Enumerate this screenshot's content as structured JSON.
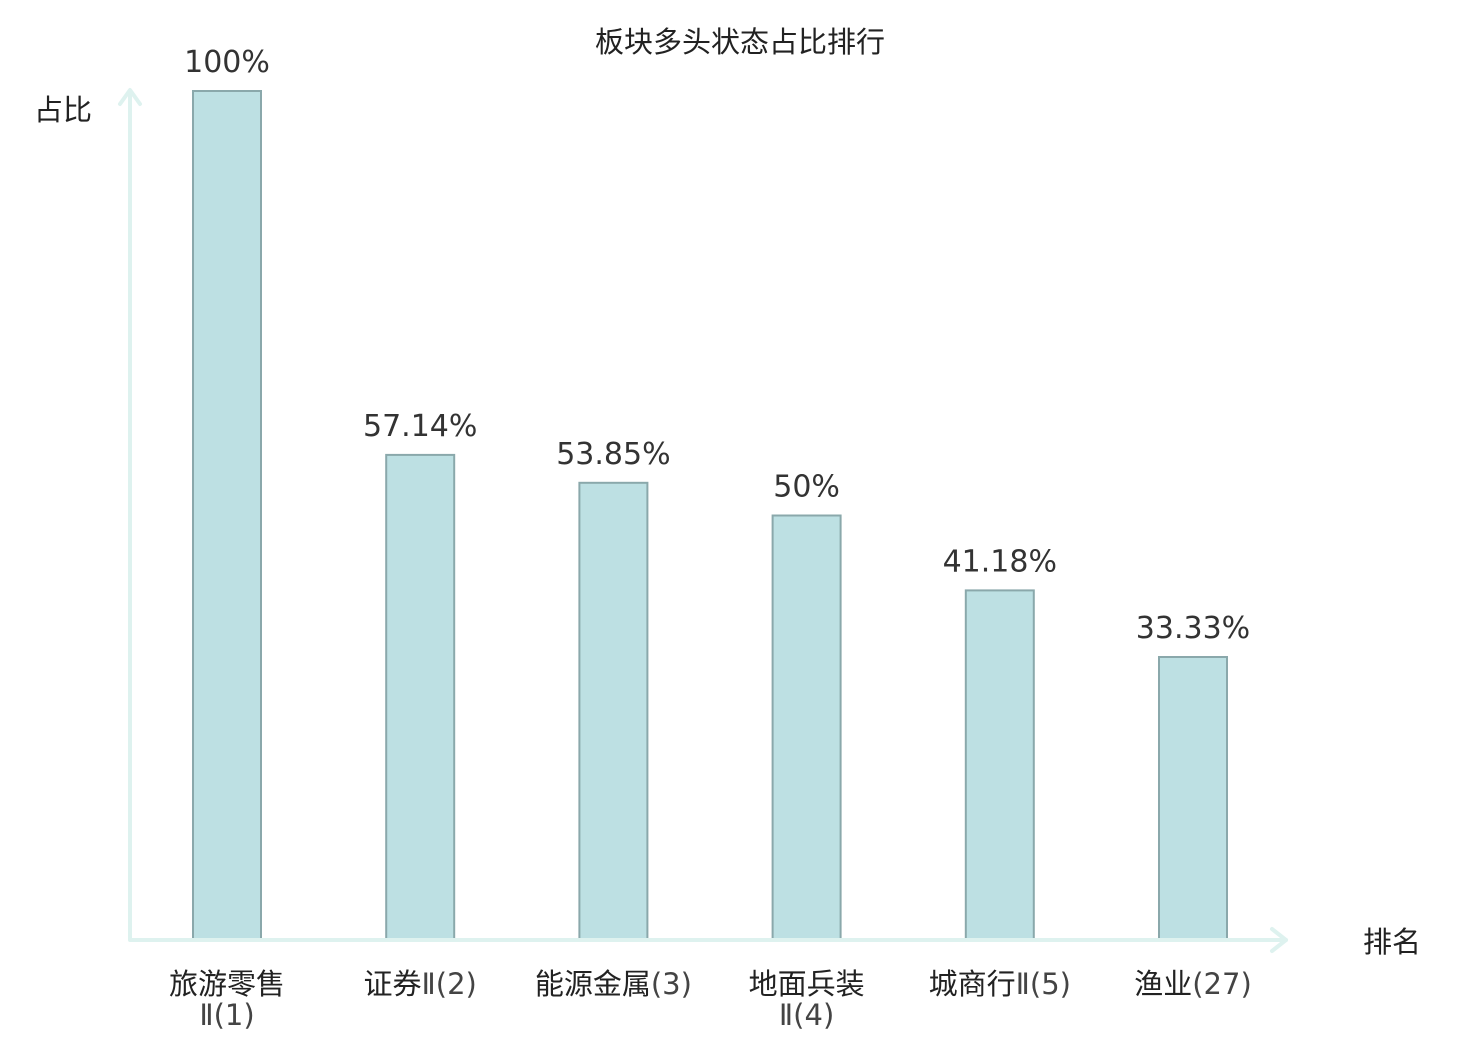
{
  "chart_data": {
    "type": "bar",
    "title": "板块多头状态占比排行",
    "ylabel": "占比",
    "xlabel": "排名",
    "ylim": [
      0,
      100
    ],
    "grid": false,
    "legend": "none",
    "categories": [
      {
        "name": "旅游零售",
        "rank": "Ⅱ(1)",
        "highlight": false
      },
      {
        "name": "证券",
        "rank": "Ⅱ(2)",
        "highlight": false
      },
      {
        "name": "能源金属",
        "rank": "(3)",
        "highlight": false
      },
      {
        "name": "地面兵装",
        "rank": "Ⅱ(4)",
        "highlight": false
      },
      {
        "name": "城商行",
        "rank": "Ⅱ(5)",
        "highlight": false
      },
      {
        "name": "渔业",
        "rank": "(27)",
        "highlight": true
      }
    ],
    "values": [
      100,
      57.14,
      53.85,
      50,
      41.18,
      33.33
    ],
    "value_labels": [
      "100%",
      "57.14%",
      "53.85%",
      "50%",
      "41.18%",
      "33.33%"
    ],
    "colors": {
      "bar_fill": "#bde0e3",
      "bar_stroke": "#8aa8ab",
      "axis": "#def2ef",
      "highlight_text": "#e02020",
      "text": "#222222"
    }
  }
}
